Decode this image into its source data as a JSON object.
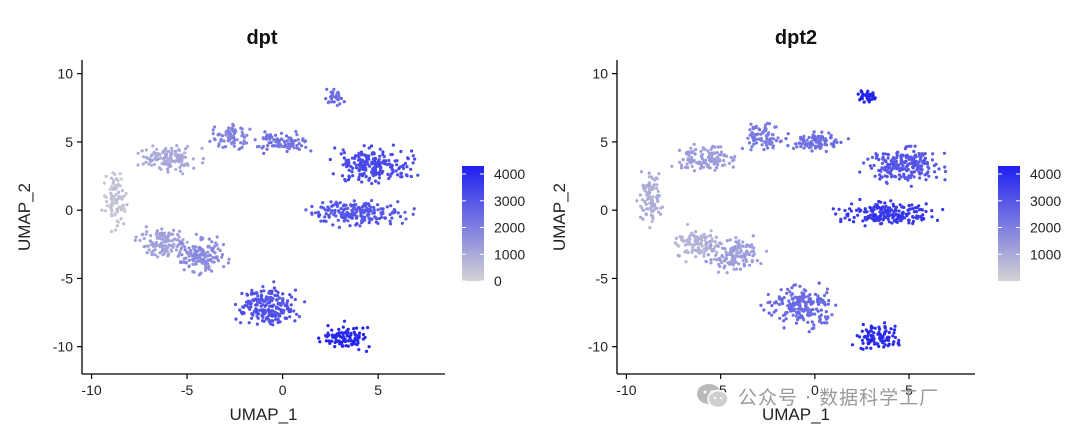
{
  "chart_data": [
    {
      "type": "scatter",
      "title": "dpt",
      "xlabel": "UMAP_1",
      "ylabel": "UMAP_2",
      "xlim": [
        -10.5,
        8.5
      ],
      "ylim": [
        -12,
        11
      ],
      "xticks": [
        -10,
        -5,
        0,
        5
      ],
      "xtick_labels": [
        "-10",
        "-5",
        "0",
        "5"
      ],
      "yticks": [
        -10,
        -5,
        0,
        5,
        10
      ],
      "ytick_labels": [
        "-10",
        "-5",
        "0",
        "5",
        "10"
      ],
      "grid": false,
      "legend": {
        "placement": "right",
        "type": "colorbar",
        "min": 0,
        "max": 4300,
        "ticks": [
          0,
          1000,
          2000,
          3000,
          4000
        ],
        "tick_labels": [
          "0",
          "1000",
          "2000",
          "3000",
          "4000"
        ]
      },
      "color_low": "#d3d3d3",
      "color_high": "#1f1ff0",
      "clusters": [
        {
          "region": "far-left arm",
          "x": [
            -9.5,
            -8.0
          ],
          "y": [
            -2,
            3.5
          ],
          "value": 400
        },
        {
          "region": "upper-left branch",
          "x": [
            -8.0,
            -3.5
          ],
          "y": [
            2.5,
            5
          ],
          "value": 1000
        },
        {
          "region": "lower-left band",
          "x": [
            -8.0,
            -4.5
          ],
          "y": [
            -4,
            -1
          ],
          "value": 1200
        },
        {
          "region": "left-middle mass",
          "x": [
            -6.0,
            -2.5
          ],
          "y": [
            -5,
            -1.5
          ],
          "value": 1700
        },
        {
          "region": "top arc",
          "x": [
            -4.0,
            -1.5
          ],
          "y": [
            4,
            6.8
          ],
          "value": 1900
        },
        {
          "region": "upper bridge",
          "x": [
            -2.0,
            2.0
          ],
          "y": [
            4,
            6
          ],
          "value": 2300
        },
        {
          "region": "small top island",
          "x": [
            2.0,
            3.5
          ],
          "y": [
            7.5,
            9
          ],
          "value": 2400
        },
        {
          "region": "right upper mass",
          "x": [
            2.0,
            7.5
          ],
          "y": [
            1.5,
            5
          ],
          "value": 3300
        },
        {
          "region": "right lower mass",
          "x": [
            0.5,
            7.5
          ],
          "y": [
            -1.5,
            1
          ],
          "value": 3000
        },
        {
          "region": "diagonal tail",
          "x": [
            -3.0,
            1.5
          ],
          "y": [
            -9,
            -5
          ],
          "value": 3100
        },
        {
          "region": "bottom-right mass",
          "x": [
            1.5,
            5.0
          ],
          "y": [
            -10.5,
            -8
          ],
          "value": 4100
        }
      ]
    },
    {
      "type": "scatter",
      "title": "dpt2",
      "xlabel": "UMAP_1",
      "ylabel": "UMAP_2",
      "xlim": [
        -10.5,
        8.5
      ],
      "ylim": [
        -12,
        11
      ],
      "xticks": [
        -10,
        -5,
        0,
        5
      ],
      "xtick_labels": [
        "-10",
        "-5",
        "0",
        "5"
      ],
      "yticks": [
        -10,
        -5,
        0,
        5,
        10
      ],
      "ytick_labels": [
        "-10",
        "-5",
        "0",
        "5",
        "10"
      ],
      "grid": false,
      "legend": {
        "placement": "right",
        "type": "colorbar",
        "min": 0,
        "max": 4300,
        "ticks": [
          1000,
          2000,
          3000,
          4000
        ],
        "tick_labels": [
          "1000",
          "2000",
          "3000",
          "4000"
        ]
      },
      "color_low": "#d3d3d3",
      "color_high": "#1f1ff0",
      "clusters": [
        {
          "region": "far-left arm",
          "x": [
            -9.5,
            -8.0
          ],
          "y": [
            -2,
            3.5
          ],
          "value": 900
        },
        {
          "region": "upper-left branch",
          "x": [
            -8.0,
            -3.5
          ],
          "y": [
            2.5,
            5
          ],
          "value": 1300
        },
        {
          "region": "lower-left band",
          "x": [
            -8.0,
            -4.5
          ],
          "y": [
            -4,
            -1
          ],
          "value": 800
        },
        {
          "region": "left-middle mass",
          "x": [
            -6.0,
            -2.5
          ],
          "y": [
            -5,
            -1.5
          ],
          "value": 1300
        },
        {
          "region": "top arc",
          "x": [
            -4.0,
            -1.5
          ],
          "y": [
            4,
            6.8
          ],
          "value": 2100
        },
        {
          "region": "upper bridge",
          "x": [
            -2.0,
            2.0
          ],
          "y": [
            4,
            6
          ],
          "value": 2400
        },
        {
          "region": "small top island",
          "x": [
            2.0,
            3.5
          ],
          "y": [
            7.5,
            9
          ],
          "value": 4200
        },
        {
          "region": "right upper mass",
          "x": [
            2.0,
            7.5
          ],
          "y": [
            1.5,
            5
          ],
          "value": 3000
        },
        {
          "region": "right lower mass",
          "x": [
            0.5,
            7.5
          ],
          "y": [
            -1.5,
            1
          ],
          "value": 3700
        },
        {
          "region": "diagonal tail",
          "x": [
            -3.0,
            1.5
          ],
          "y": [
            -9,
            -5
          ],
          "value": 2500
        },
        {
          "region": "bottom-right mass",
          "x": [
            1.5,
            5.0
          ],
          "y": [
            -10.5,
            -8
          ],
          "value": 4000
        }
      ]
    }
  ],
  "watermark": {
    "text": "公众号 · 数据科学工厂",
    "icon": "wechat-icon"
  }
}
